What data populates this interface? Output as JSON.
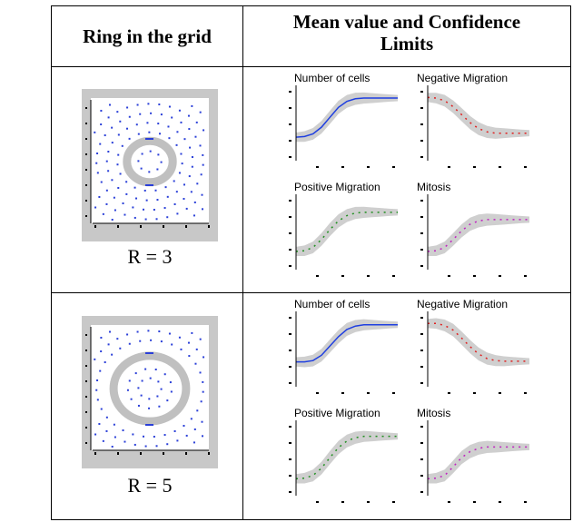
{
  "header": {
    "col1": "Ring in the grid",
    "col2_line1": "Mean value and Confidence",
    "col2_line2": "Limits"
  },
  "rows": [
    {
      "label": "R = 3",
      "ring_radius": 3,
      "charts": [
        {
          "title": "Number of cells",
          "color": "#1f3fe0",
          "x": [
            0,
            1,
            2,
            3,
            4,
            5,
            6,
            7,
            8,
            9,
            10,
            11,
            12
          ],
          "y": [
            0.3,
            0.31,
            0.35,
            0.45,
            0.6,
            0.75,
            0.84,
            0.88,
            0.89,
            0.89,
            0.89,
            0.89,
            0.89
          ]
        },
        {
          "title": "Negative Migration",
          "color": "#e02020",
          "x": [
            0,
            1,
            2,
            3,
            4,
            5,
            6,
            7,
            8,
            9,
            10,
            11,
            12
          ],
          "y": [
            0.9,
            0.89,
            0.85,
            0.76,
            0.64,
            0.52,
            0.43,
            0.38,
            0.36,
            0.36,
            0.36,
            0.36,
            0.36
          ]
        },
        {
          "title": "Positive Migration",
          "color": "#1f8f1f",
          "x": [
            0,
            1,
            2,
            3,
            4,
            5,
            6,
            7,
            8,
            9,
            10,
            11,
            12
          ],
          "y": [
            0.22,
            0.23,
            0.28,
            0.4,
            0.55,
            0.68,
            0.76,
            0.8,
            0.81,
            0.81,
            0.81,
            0.81,
            0.81
          ]
        },
        {
          "title": "Mitosis",
          "color": "#c020c0",
          "x": [
            0,
            1,
            2,
            3,
            4,
            5,
            6,
            7,
            8,
            9,
            10,
            11,
            12
          ],
          "y": [
            0.22,
            0.23,
            0.28,
            0.4,
            0.53,
            0.63,
            0.68,
            0.7,
            0.7,
            0.7,
            0.7,
            0.7,
            0.7
          ]
        }
      ]
    },
    {
      "label": "R = 5",
      "ring_radius": 5,
      "charts": [
        {
          "title": "Number of cells",
          "color": "#1f3fe0",
          "x": [
            0,
            1,
            2,
            3,
            4,
            5,
            6,
            7,
            8,
            9,
            10,
            11,
            12
          ],
          "y": [
            0.32,
            0.32,
            0.34,
            0.42,
            0.56,
            0.7,
            0.81,
            0.86,
            0.88,
            0.88,
            0.88,
            0.88,
            0.88
          ]
        },
        {
          "title": "Negative Migration",
          "color": "#e02020",
          "x": [
            0,
            1,
            2,
            3,
            4,
            5,
            6,
            7,
            8,
            9,
            10,
            11,
            12
          ],
          "y": [
            0.9,
            0.9,
            0.87,
            0.8,
            0.68,
            0.55,
            0.44,
            0.37,
            0.34,
            0.33,
            0.33,
            0.33,
            0.33
          ]
        },
        {
          "title": "Positive Migration",
          "color": "#1f8f1f",
          "x": [
            0,
            1,
            2,
            3,
            4,
            5,
            6,
            7,
            8,
            9,
            10,
            11,
            12
          ],
          "y": [
            0.2,
            0.21,
            0.25,
            0.36,
            0.52,
            0.67,
            0.77,
            0.82,
            0.84,
            0.84,
            0.84,
            0.84,
            0.84
          ]
        },
        {
          "title": "Mitosis",
          "color": "#c020c0",
          "x": [
            0,
            1,
            2,
            3,
            4,
            5,
            6,
            7,
            8,
            9,
            10,
            11,
            12
          ],
          "y": [
            0.2,
            0.21,
            0.25,
            0.38,
            0.52,
            0.61,
            0.66,
            0.68,
            0.68,
            0.68,
            0.68,
            0.68,
            0.68
          ]
        }
      ]
    }
  ],
  "colors": {
    "ring": "#c0c0c0",
    "dots": "#2a3fd8",
    "band": "#cfcfcf",
    "frame": "#c8c8c8"
  }
}
